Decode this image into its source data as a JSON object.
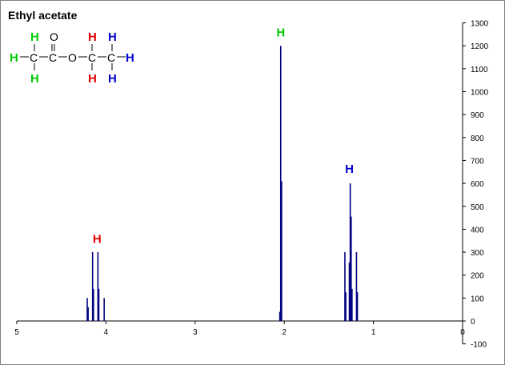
{
  "chart_data": {
    "type": "line",
    "title": "Ethyl acetate",
    "xlabel": "",
    "ylabel": "",
    "xlim": [
      5,
      0
    ],
    "ylim": [
      -100,
      1300
    ],
    "x_ticks": [
      "5",
      "4",
      "3",
      "2",
      "1",
      "0"
    ],
    "y_ticks": [
      "1300",
      "1200",
      "1100",
      "1000",
      "900",
      "800",
      "700",
      "600",
      "500",
      "400",
      "300",
      "200",
      "100",
      "0",
      "-100"
    ],
    "grid": false,
    "series": [
      {
        "peaks": [
          {
            "x": 4.21,
            "y": 100
          },
          {
            "x": 4.2,
            "y": 60
          },
          {
            "x": 4.15,
            "y": 300
          },
          {
            "x": 4.14,
            "y": 140
          },
          {
            "x": 4.09,
            "y": 300
          },
          {
            "x": 4.08,
            "y": 140
          },
          {
            "x": 4.02,
            "y": 100
          },
          {
            "x": 2.04,
            "y": 1200
          },
          {
            "x": 2.03,
            "y": 610
          },
          {
            "x": 2.05,
            "y": 40
          },
          {
            "x": 1.32,
            "y": 300
          },
          {
            "x": 1.31,
            "y": 125
          },
          {
            "x": 1.27,
            "y": 255
          },
          {
            "x": 1.26,
            "y": 600
          },
          {
            "x": 1.25,
            "y": 455
          },
          {
            "x": 1.24,
            "y": 140
          },
          {
            "x": 1.19,
            "y": 300
          },
          {
            "x": 1.18,
            "y": 125
          }
        ],
        "color": "#000080"
      }
    ],
    "annotations": [
      {
        "text": "H",
        "x": 4.1,
        "y": 340,
        "color": "#e00000"
      },
      {
        "text": "H",
        "x": 2.04,
        "y": 1240,
        "color": "#00cc00"
      },
      {
        "text": "H",
        "x": 1.27,
        "y": 645,
        "color": "#0000cc"
      }
    ]
  },
  "molecule": {
    "atoms": [
      "H",
      "C",
      "C",
      "O",
      "C",
      "C",
      "H"
    ],
    "top_row": [
      "H",
      "O",
      "H",
      "H"
    ],
    "bottom_row": [
      "H",
      "H",
      "H"
    ],
    "colors": {
      "acetyl_h": "#00cc00",
      "ch2_h": "#e00000",
      "ch3_h": "#0000cc",
      "atom": "#000000"
    }
  }
}
